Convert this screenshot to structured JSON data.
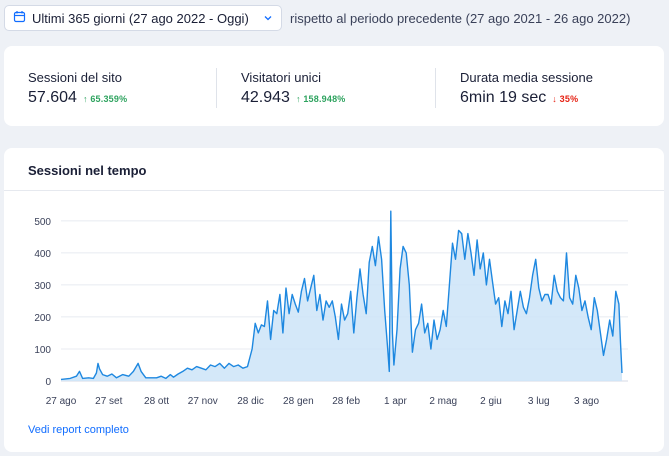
{
  "header": {
    "date_range": "Ultimi 365 giorni (27 ago 2022 - Oggi)",
    "comparison": "rispetto al periodo precedente (27 ago 2021 - 26 ago 2022)"
  },
  "kpis": [
    {
      "title": "Sessioni del sito",
      "value": "57.604",
      "delta": "65.359%",
      "direction": "up"
    },
    {
      "title": "Visitatori unici",
      "value": "42.943",
      "delta": "158.948%",
      "direction": "up"
    },
    {
      "title": "Durata media sessione",
      "value": "6min 19 sec",
      "delta": "35%",
      "direction": "down"
    }
  ],
  "chart_title": "Sessioni nel tempo",
  "report_link": "Vedi report completo",
  "colors": {
    "accent": "#116dff",
    "line": "#1e88e0",
    "fill": "#cde4f8",
    "up": "#2ea35f",
    "down": "#e62214"
  },
  "chart_data": {
    "type": "area",
    "y_ticks": [
      0,
      100,
      200,
      300,
      400,
      500
    ],
    "ylim": [
      0,
      540
    ],
    "x_tick_labels": [
      "27 ago",
      "27 set",
      "28 ott",
      "27 nov",
      "28 dic",
      "28 gen",
      "28 feb",
      "1 apr",
      "2 mag",
      "2 giu",
      "3 lug",
      "3 ago"
    ],
    "x_tick_days": [
      0,
      31,
      62,
      92,
      123,
      154,
      185,
      217,
      248,
      279,
      310,
      341
    ],
    "x_range_days": [
      0,
      364
    ],
    "grid": "horizontal",
    "legend": "none",
    "points": [
      [
        0,
        5
      ],
      [
        6,
        8
      ],
      [
        10,
        15
      ],
      [
        12,
        30
      ],
      [
        14,
        8
      ],
      [
        18,
        10
      ],
      [
        21,
        8
      ],
      [
        23,
        25
      ],
      [
        24,
        55
      ],
      [
        25,
        38
      ],
      [
        27,
        20
      ],
      [
        30,
        15
      ],
      [
        33,
        22
      ],
      [
        36,
        10
      ],
      [
        40,
        20
      ],
      [
        44,
        15
      ],
      [
        47,
        30
      ],
      [
        50,
        55
      ],
      [
        52,
        30
      ],
      [
        55,
        10
      ],
      [
        58,
        10
      ],
      [
        62,
        10
      ],
      [
        65,
        15
      ],
      [
        68,
        8
      ],
      [
        71,
        20
      ],
      [
        73,
        12
      ],
      [
        76,
        22
      ],
      [
        79,
        30
      ],
      [
        82,
        40
      ],
      [
        85,
        35
      ],
      [
        88,
        45
      ],
      [
        91,
        40
      ],
      [
        94,
        35
      ],
      [
        97,
        50
      ],
      [
        100,
        45
      ],
      [
        103,
        55
      ],
      [
        106,
        40
      ],
      [
        109,
        55
      ],
      [
        112,
        45
      ],
      [
        115,
        50
      ],
      [
        118,
        40
      ],
      [
        121,
        45
      ],
      [
        124,
        100
      ],
      [
        126,
        180
      ],
      [
        128,
        150
      ],
      [
        130,
        175
      ],
      [
        132,
        170
      ],
      [
        134,
        250
      ],
      [
        136,
        130
      ],
      [
        138,
        220
      ],
      [
        140,
        210
      ],
      [
        142,
        270
      ],
      [
        144,
        150
      ],
      [
        146,
        290
      ],
      [
        148,
        210
      ],
      [
        150,
        270
      ],
      [
        152,
        240
      ],
      [
        154,
        215
      ],
      [
        156,
        280
      ],
      [
        158,
        320
      ],
      [
        160,
        250
      ],
      [
        162,
        290
      ],
      [
        164,
        330
      ],
      [
        166,
        220
      ],
      [
        168,
        270
      ],
      [
        170,
        190
      ],
      [
        172,
        250
      ],
      [
        174,
        230
      ],
      [
        176,
        250
      ],
      [
        178,
        200
      ],
      [
        180,
        130
      ],
      [
        182,
        240
      ],
      [
        184,
        190
      ],
      [
        186,
        210
      ],
      [
        188,
        280
      ],
      [
        190,
        150
      ],
      [
        192,
        260
      ],
      [
        194,
        350
      ],
      [
        196,
        270
      ],
      [
        198,
        210
      ],
      [
        200,
        370
      ],
      [
        202,
        420
      ],
      [
        204,
        360
      ],
      [
        206,
        450
      ],
      [
        208,
        380
      ],
      [
        210,
        220
      ],
      [
        212,
        100
      ],
      [
        213,
        30
      ],
      [
        214,
        530
      ],
      [
        215,
        150
      ],
      [
        216,
        50
      ],
      [
        218,
        160
      ],
      [
        220,
        350
      ],
      [
        222,
        420
      ],
      [
        224,
        400
      ],
      [
        226,
        300
      ],
      [
        228,
        90
      ],
      [
        230,
        160
      ],
      [
        232,
        180
      ],
      [
        234,
        240
      ],
      [
        236,
        150
      ],
      [
        238,
        180
      ],
      [
        240,
        100
      ],
      [
        242,
        190
      ],
      [
        244,
        130
      ],
      [
        246,
        160
      ],
      [
        248,
        220
      ],
      [
        250,
        170
      ],
      [
        252,
        300
      ],
      [
        254,
        430
      ],
      [
        256,
        380
      ],
      [
        258,
        470
      ],
      [
        260,
        460
      ],
      [
        262,
        380
      ],
      [
        264,
        460
      ],
      [
        266,
        400
      ],
      [
        268,
        330
      ],
      [
        270,
        440
      ],
      [
        272,
        350
      ],
      [
        274,
        400
      ],
      [
        276,
        300
      ],
      [
        278,
        380
      ],
      [
        280,
        310
      ],
      [
        282,
        240
      ],
      [
        284,
        260
      ],
      [
        286,
        170
      ],
      [
        288,
        250
      ],
      [
        290,
        210
      ],
      [
        292,
        280
      ],
      [
        294,
        160
      ],
      [
        296,
        220
      ],
      [
        298,
        280
      ],
      [
        300,
        230
      ],
      [
        302,
        210
      ],
      [
        304,
        260
      ],
      [
        306,
        330
      ],
      [
        308,
        380
      ],
      [
        310,
        290
      ],
      [
        312,
        250
      ],
      [
        314,
        270
      ],
      [
        316,
        270
      ],
      [
        318,
        240
      ],
      [
        320,
        330
      ],
      [
        322,
        280
      ],
      [
        324,
        260
      ],
      [
        326,
        250
      ],
      [
        328,
        400
      ],
      [
        330,
        260
      ],
      [
        332,
        240
      ],
      [
        334,
        330
      ],
      [
        336,
        290
      ],
      [
        338,
        220
      ],
      [
        340,
        250
      ],
      [
        342,
        200
      ],
      [
        344,
        160
      ],
      [
        346,
        260
      ],
      [
        348,
        220
      ],
      [
        350,
        150
      ],
      [
        352,
        80
      ],
      [
        354,
        130
      ],
      [
        356,
        190
      ],
      [
        358,
        140
      ],
      [
        360,
        280
      ],
      [
        362,
        240
      ],
      [
        363,
        120
      ],
      [
        364,
        25
      ]
    ]
  }
}
